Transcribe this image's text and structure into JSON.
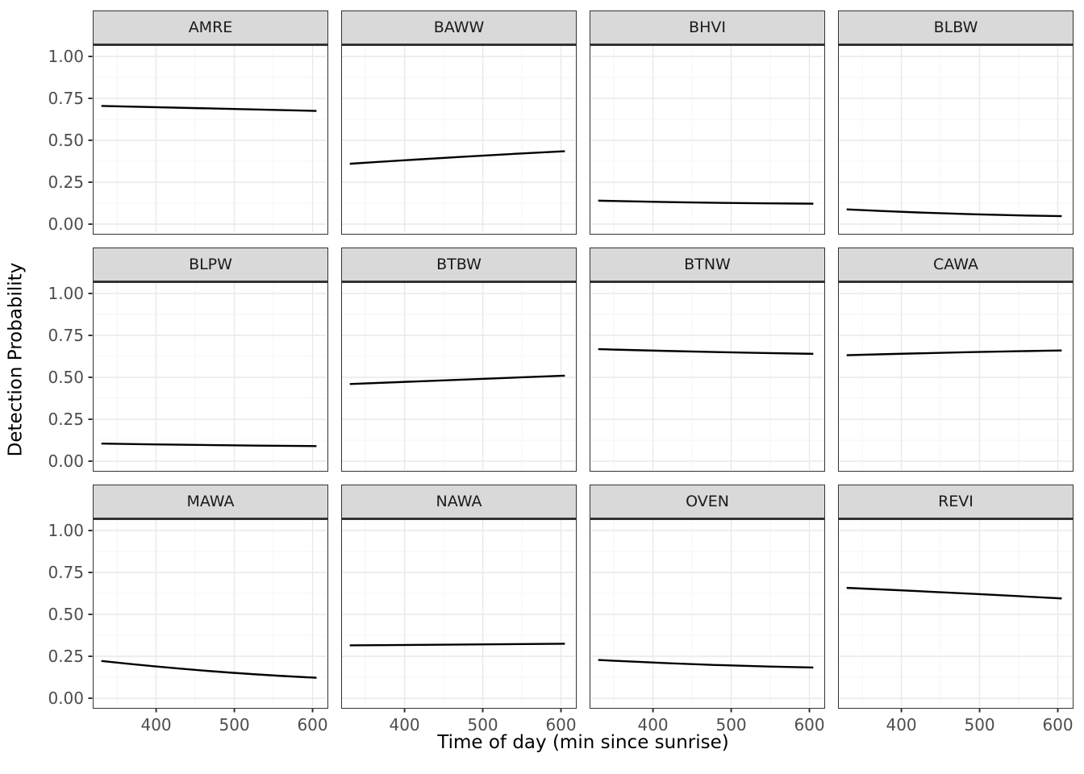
{
  "figure": {
    "x_axis_title": "Time of day (min since sunrise)",
    "y_axis_title": "Detection Probability"
  },
  "chart_data": {
    "type": "line",
    "layout": "facet-grid-3x4",
    "title": "",
    "xlabel": "Time of day (min since sunrise)",
    "ylabel": "Detection Probability",
    "xlim": [
      320,
      618
    ],
    "ylim": [
      -0.05,
      1.06
    ],
    "x_tick_values": [
      400,
      500,
      600
    ],
    "x_tick_labels": [
      "400",
      "500",
      "600"
    ],
    "y_tick_values": [
      1.0,
      0.75,
      0.5,
      0.25,
      0.0
    ],
    "y_tick_labels": [
      "1.00",
      "0.75",
      "0.50",
      "0.25",
      "0.00"
    ],
    "x_minor_ticks": [
      350,
      450,
      550
    ],
    "y_minor_ticks": [
      0.125,
      0.375,
      0.625,
      0.875
    ],
    "grid": true,
    "legend": false,
    "x": [
      330,
      468,
      605
    ],
    "series": [
      {
        "name": "AMRE",
        "values": [
          0.705,
          0.69,
          0.675
        ]
      },
      {
        "name": "BAWW",
        "values": [
          0.36,
          0.4,
          0.435
        ]
      },
      {
        "name": "BHVI",
        "values": [
          0.14,
          0.128,
          0.122
        ]
      },
      {
        "name": "BLBW",
        "values": [
          0.088,
          0.062,
          0.048
        ]
      },
      {
        "name": "BLPW",
        "values": [
          0.105,
          0.096,
          0.09
        ]
      },
      {
        "name": "BTBW",
        "values": [
          0.46,
          0.485,
          0.51
        ]
      },
      {
        "name": "BTNW",
        "values": [
          0.668,
          0.652,
          0.64
        ]
      },
      {
        "name": "CAWA",
        "values": [
          0.632,
          0.648,
          0.66
        ]
      },
      {
        "name": "MAWA",
        "values": [
          0.222,
          0.162,
          0.122
        ]
      },
      {
        "name": "NAWA",
        "values": [
          0.315,
          0.32,
          0.325
        ]
      },
      {
        "name": "OVEN",
        "values": [
          0.228,
          0.2,
          0.183
        ]
      },
      {
        "name": "REVI",
        "values": [
          0.658,
          0.628,
          0.595
        ]
      }
    ]
  },
  "style": {
    "strip_fill": "#d9d9d9",
    "panel_border": "#333333",
    "grid_major_color": "#e9e9e9",
    "grid_minor_color": "#f5f5f5",
    "axis_text_color": "#4d4d4d",
    "line_color": "#000000",
    "tick_color": "#333333"
  }
}
